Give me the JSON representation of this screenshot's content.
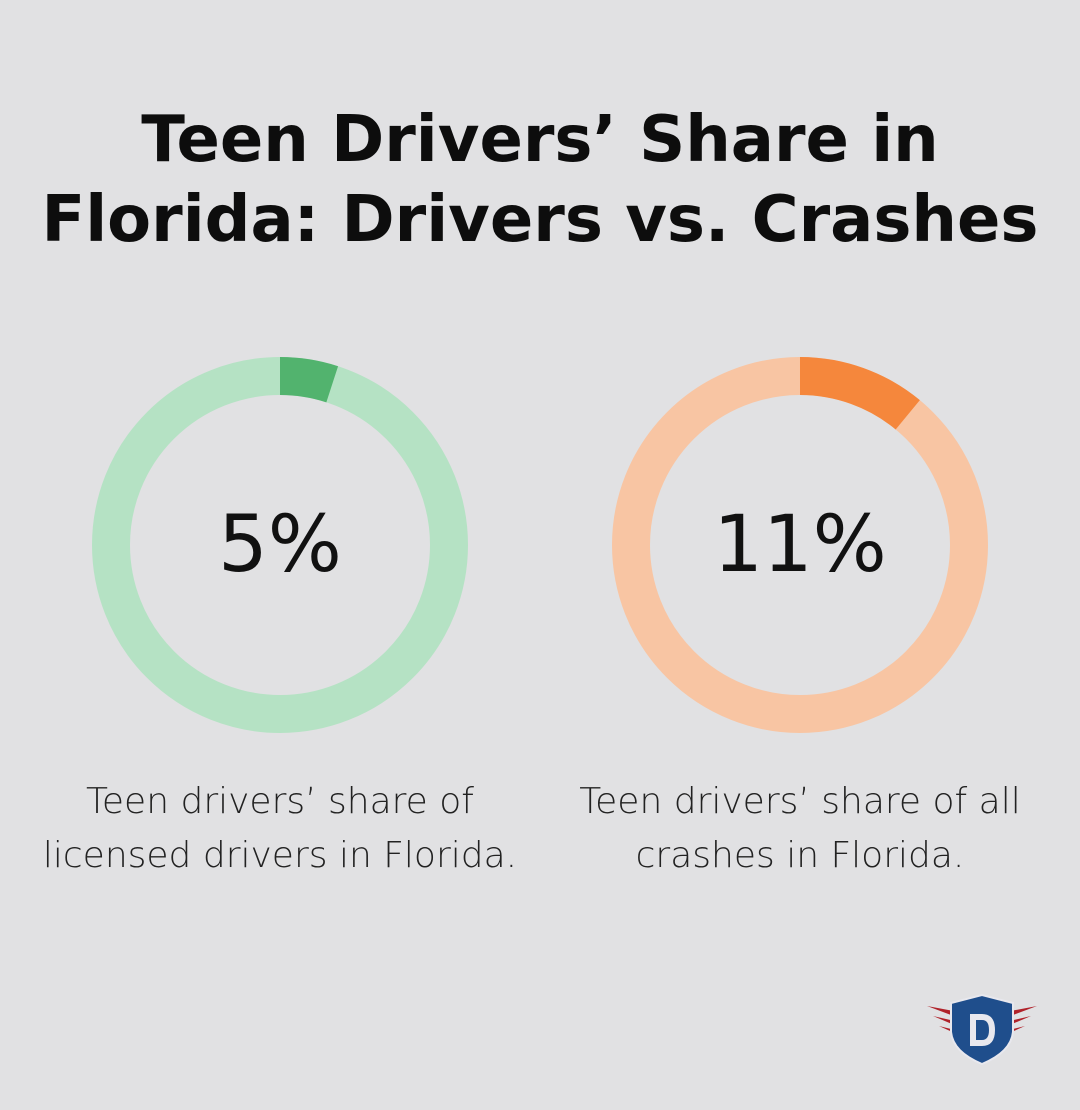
{
  "title_line1": "Teen Drivers’ Share in",
  "title_line2": "Florida: Drivers vs. Crashes",
  "chart_data": [
    {
      "type": "pie",
      "variant": "donut",
      "values": [
        5,
        95
      ],
      "label": "5%",
      "caption": "Teen drivers’ share of licensed drivers in Florida.",
      "colors": {
        "highlight": "#52b36e",
        "track": "#b5e2c4"
      }
    },
    {
      "type": "pie",
      "variant": "donut",
      "values": [
        11,
        89
      ],
      "label": "11%",
      "caption": "Teen drivers’ share of all crashes in Florida.",
      "colors": {
        "highlight": "#f5873c",
        "track": "#f8c5a3"
      }
    }
  ],
  "logo": {
    "icon": "shield-d-wings-logo",
    "text": "D",
    "colors": {
      "shield": "#1f4e8c",
      "wings": "#b0222a"
    }
  }
}
